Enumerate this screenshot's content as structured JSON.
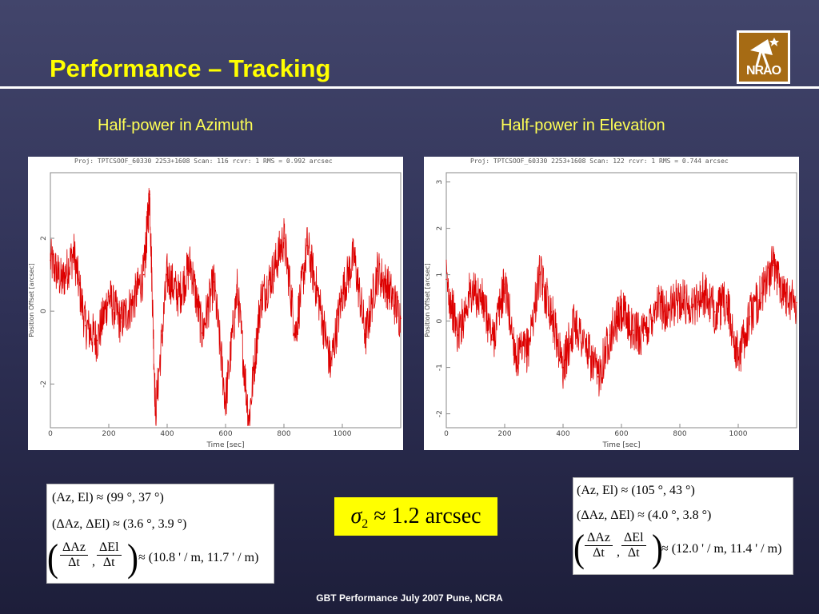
{
  "slide": {
    "title": "Performance – Tracking",
    "footer": "GBT Performance   July 2007  Pune, NCRA"
  },
  "logo": {
    "text": "NRAO",
    "icon": "nrao-telescope-logo"
  },
  "colors": {
    "title": "#ffff00",
    "subhead": "#ffff55",
    "trace": "#dd0000",
    "highlight": "#ffff00"
  },
  "left_panel": {
    "subtitle": "Half-power in Azimuth",
    "eq": {
      "line1": "(Az, El) ≈ (99 °, 37 °)",
      "line2": "(ΔAz, ΔEl) ≈ (3.6 °, 3.9 °)",
      "frac1_num": "ΔAz",
      "frac1_den": "Δt",
      "frac2_num": "ΔEl",
      "frac2_den": "Δt",
      "line3_rhs": "≈ (10.8 ' / m, 11.7 ' / m)"
    }
  },
  "right_panel": {
    "subtitle": "Half-power in Elevation",
    "eq": {
      "line1": "(Az, El) ≈ (105 °, 43 °)",
      "line2": "(ΔAz, ΔEl) ≈ (4.0 °, 3.8 °)",
      "frac1_num": "ΔAz",
      "frac1_den": "Δt",
      "frac2_num": "ΔEl",
      "frac2_den": "Δt",
      "line3_rhs": "≈ (12.0 ' / m, 11.4 ' / m)"
    }
  },
  "sigma": {
    "symbol": "σ",
    "sub": "2",
    "text": " ≈ 1.2 arcsec"
  },
  "chart_data": [
    {
      "type": "line",
      "header": "Proj: TPTCSOOF_60330   2253+1608   Scan: 116   rcvr: 1   RMS = 0.992 arcsec",
      "xlabel": "Time [sec]",
      "ylabel": "Position Offset [arcsec]",
      "xlim": [
        0,
        1200
      ],
      "ylim": [
        -3.2,
        3.8
      ],
      "xticks": [
        0,
        200,
        400,
        600,
        800,
        1000
      ],
      "yticks": [
        -2,
        0,
        2
      ],
      "grid": false,
      "series": [
        {
          "x": [
            0,
            40,
            80,
            120,
            160,
            200,
            240,
            280,
            320,
            340,
            360,
            400,
            440,
            480,
            520,
            560,
            600,
            640,
            680,
            720,
            760,
            800,
            840,
            880,
            920,
            960,
            1000,
            1040,
            1080,
            1120,
            1160,
            1200
          ],
          "y": [
            1.4,
            0.8,
            1.6,
            -0.4,
            -0.8,
            0.4,
            -0.3,
            0.2,
            1.0,
            3.2,
            -2.8,
            1.0,
            0.4,
            1.3,
            -0.6,
            0.8,
            -2.5,
            0.6,
            -3.0,
            0.3,
            1.0,
            2.0,
            -0.6,
            1.8,
            0.3,
            -1.5,
            0.5,
            1.5,
            -0.7,
            1.1,
            0.6,
            -0.2
          ]
        }
      ]
    },
    {
      "type": "line",
      "header": "Proj: TPTCSOOF_60330   2253+1608   Scan: 122   rcvr: 1   RMS = 0.744 arcsec",
      "xlabel": "Time [sec]",
      "ylabel": "Position Offset [arcsec]",
      "xlim": [
        0,
        1200
      ],
      "ylim": [
        -2.3,
        3.2
      ],
      "xticks": [
        0,
        200,
        400,
        600,
        800,
        1000
      ],
      "yticks": [
        -2,
        -1,
        0,
        1,
        2,
        3
      ],
      "grid": false,
      "series": [
        {
          "x": [
            0,
            40,
            80,
            120,
            160,
            200,
            240,
            280,
            320,
            360,
            400,
            440,
            480,
            520,
            560,
            600,
            640,
            680,
            720,
            760,
            800,
            840,
            880,
            920,
            960,
            1000,
            1040,
            1080,
            1120,
            1160,
            1200
          ],
          "y": [
            0.9,
            -0.3,
            0.6,
            0.5,
            -0.4,
            0.8,
            -0.8,
            -0.6,
            1.0,
            0.2,
            -1.0,
            0.0,
            -0.6,
            -1.2,
            -0.3,
            0.2,
            -0.2,
            -0.3,
            0.4,
            0.2,
            0.5,
            0.3,
            0.6,
            0.2,
            0.4,
            -0.8,
            0.1,
            0.6,
            1.2,
            0.6,
            0.4
          ]
        }
      ]
    }
  ]
}
